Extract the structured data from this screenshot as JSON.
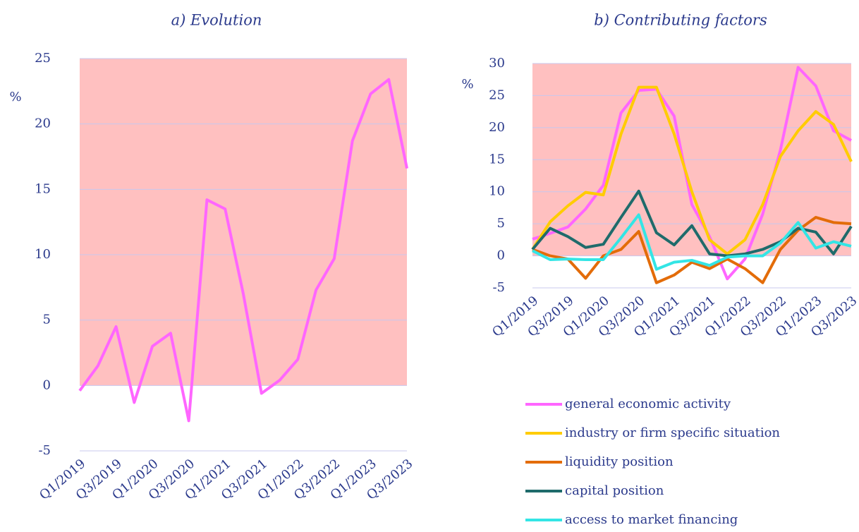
{
  "chart_data": [
    {
      "type": "line",
      "title": "a) Evolution",
      "ylabel": "%",
      "categories": [
        "Q1/2019",
        null,
        "Q3/2019",
        null,
        "Q1/2020",
        null,
        "Q3/2020",
        null,
        "Q1/2021",
        null,
        "Q3/2021",
        null,
        "Q1/2022",
        null,
        "Q3/2022",
        null,
        "Q1/2023",
        null,
        "Q3/2023"
      ],
      "series": [
        {
          "color": "#ff66ff",
          "values": [
            -0.4,
            1.5,
            4.5,
            -1.3,
            3.0,
            4.0,
            -2.7,
            14.2,
            13.5,
            7.0,
            -0.6,
            0.4,
            2.0,
            7.3,
            9.7,
            18.7,
            22.3,
            23.4,
            16.6
          ]
        }
      ],
      "ylim": [
        -5,
        25
      ],
      "yticks": [
        -5,
        0,
        5,
        10,
        15,
        20,
        25
      ],
      "grid": true,
      "band": [
        0,
        25
      ],
      "band_color": "#ffc0c0"
    },
    {
      "type": "line",
      "title": "b) Contributing factors",
      "ylabel": "%",
      "categories": [
        "Q1/2019",
        null,
        "Q3/2019",
        null,
        "Q1/2020",
        null,
        "Q3/2020",
        null,
        "Q1/2021",
        null,
        "Q3/2021",
        null,
        "Q1/2022",
        null,
        "Q3/2022",
        null,
        "Q1/2023",
        null,
        "Q3/2023"
      ],
      "series": [
        {
          "name": "general economic activity",
          "color": "#ff66ff",
          "values": [
            2.6,
            3.5,
            4.5,
            7.3,
            11,
            22.3,
            25.8,
            26,
            21.8,
            8,
            3,
            -3.6,
            -0.5,
            6.5,
            16.5,
            29.4,
            26.5,
            19.5,
            18
          ]
        },
        {
          "name": "industry or firm specific situation",
          "color": "#ffcc00",
          "values": [
            1,
            5.3,
            7.8,
            9.9,
            9.5,
            19,
            26.3,
            26.3,
            19,
            10,
            2.5,
            0.3,
            2.5,
            8,
            15.5,
            19.5,
            22.5,
            20.5,
            14.7
          ]
        },
        {
          "name": "liquidity position",
          "color": "#e36c09",
          "values": [
            1,
            0,
            -0.5,
            -3.5,
            0,
            1,
            3.8,
            -4.2,
            -3,
            -1,
            -2,
            -0.5,
            -2,
            -4.2,
            1,
            4,
            6,
            5.2,
            5
          ]
        },
        {
          "name": "capital position",
          "color": "#1f6b6b",
          "values": [
            1,
            4.3,
            3,
            1.3,
            1.8,
            6,
            10.1,
            3.6,
            1.7,
            4.7,
            0.3,
            0,
            0.3,
            1,
            2.2,
            4.3,
            3.7,
            0.3,
            4.6
          ]
        },
        {
          "name": "access to market financing",
          "color": "#33e5e5",
          "values": [
            0.8,
            -0.6,
            -0.5,
            -0.6,
            -0.6,
            2.8,
            6.4,
            -2.1,
            -1,
            -0.7,
            -1.5,
            -0.2,
            0,
            0,
            2,
            5.2,
            1.2,
            2.2,
            1.5
          ]
        }
      ],
      "ylim": [
        -5,
        30
      ],
      "yticks": [
        -5,
        0,
        5,
        10,
        15,
        20,
        25,
        30
      ],
      "grid": true,
      "band": [
        0,
        30
      ],
      "band_color": "#ffc0c0"
    }
  ]
}
